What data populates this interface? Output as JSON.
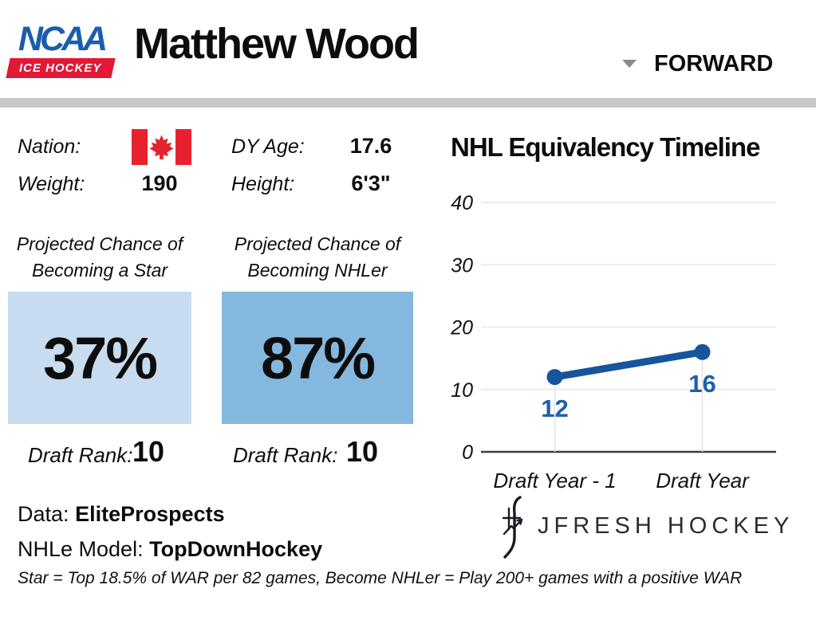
{
  "header": {
    "logo_line1": "NCAA",
    "logo_line2": "ICE HOCKEY",
    "player_name": "Matthew Wood",
    "position": "FORWARD"
  },
  "icons": {
    "position_dropdown": "chevron-down-icon",
    "nation_flag": "canada-flag-icon",
    "branding_mark": "jfresh-logo-mark"
  },
  "info": {
    "nation_label": "Nation:",
    "weight_label": "Weight:",
    "weight_value": "190",
    "dy_age_label": "DY Age:",
    "dy_age_value": "17.6",
    "height_label": "Height:",
    "height_value": "6'3\""
  },
  "projections": {
    "star": {
      "label_line1": "Projected Chance of",
      "label_line2": "Becoming a Star",
      "value": "37%",
      "box_color": "#c7dcee",
      "draft_rank_label": "Draft Rank:",
      "draft_rank_value": "10"
    },
    "nhler": {
      "label_line1": "Projected Chance of",
      "label_line2": "Becoming NHLer",
      "value": "87%",
      "box_color": "#84b8df",
      "draft_rank_label": "Draft Rank:",
      "draft_rank_value": "10"
    }
  },
  "sources": {
    "data_label": "Data:",
    "data_value": "EliteProspects",
    "model_label": "NHLe Model:",
    "model_value": "TopDownHockey"
  },
  "footnote": "Star = Top 18.5% of WAR per 82 games, Become NHLer = Play 200+ games with a positive WAR",
  "branding": {
    "logo_text": "JFRESH HOCKEY"
  },
  "chart_data": {
    "type": "line",
    "title": "NHL Equivalency Timeline",
    "categories": [
      "Draft Year - 1",
      "Draft Year"
    ],
    "values": [
      12,
      16
    ],
    "point_labels": [
      "12",
      "16"
    ],
    "ylabel": "",
    "xlabel": "",
    "ylim": [
      0,
      40
    ],
    "yticks": [
      0,
      10,
      20,
      30,
      40
    ],
    "grid": true,
    "legend": "none",
    "line_color": "#17549c",
    "point_label_color": "#1d5fae"
  }
}
